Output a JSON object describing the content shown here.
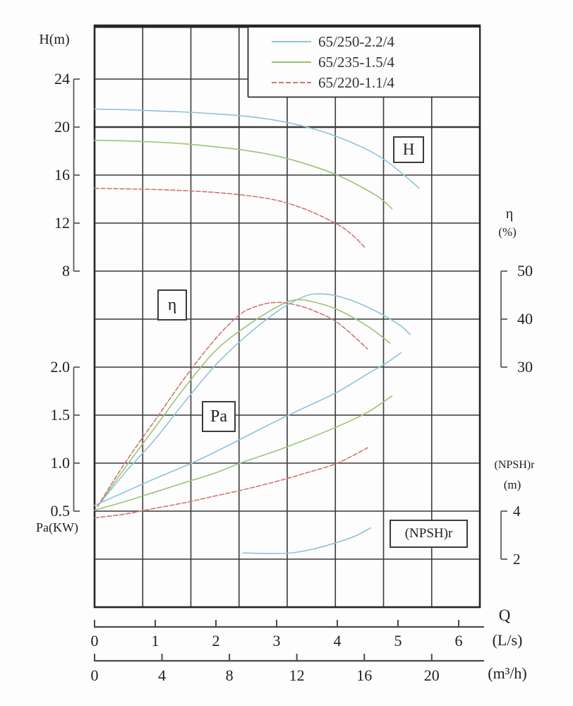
{
  "page": {
    "background": "#fdfdfd"
  },
  "labels": {
    "h_axis": "H(m)",
    "pa_axis": "Pa(KW)",
    "eta_axis": "η",
    "eta_unit": "(%)",
    "npshr_axis": "(NPSH)r",
    "npshr_unit": "(m)",
    "q_axis": "Q",
    "q_unit_ls": "(L/s)",
    "q_unit_m3h": "(m³/h)",
    "box_h": "H",
    "box_eta": "η",
    "box_pa": "Pa",
    "box_npshr": "(NPSH)r",
    "h_ticks": [
      "24",
      "20",
      "16",
      "12",
      "8"
    ],
    "pa_ticks": [
      "2.0",
      "1.5",
      "1.0",
      "0.5"
    ],
    "eta_ticks": [
      "50",
      "40",
      "30"
    ],
    "npsh_ticks": [
      "4",
      "2"
    ],
    "qls_ticks": [
      "0",
      "1",
      "2",
      "3",
      "4",
      "5",
      "6"
    ],
    "qm3h_ticks": [
      "0",
      "4",
      "8",
      "12",
      "16",
      "20"
    ]
  },
  "chart_data": {
    "type": "line",
    "x": {
      "label": "Q",
      "units": [
        "(L/s)",
        "(m³/h)"
      ],
      "ticks_ls": [
        0,
        1,
        2,
        3,
        4,
        5,
        6
      ],
      "ticks_m3h": [
        0,
        4,
        8,
        12,
        16,
        20
      ],
      "range_ls": [
        0,
        6.35
      ],
      "grid": "on"
    },
    "models": [
      "65/250-2.2/4",
      "65/235-1.5/4",
      "65/220-1.1/4"
    ],
    "colors": {
      "65/250-2.2/4": "#8fc2da",
      "65/235-1.5/4": "#9cc474",
      "65/220-1.1/4": "#d07474"
    },
    "legend_position": "top-right",
    "panels": [
      {
        "quantity": "H",
        "unit": "m",
        "ticks": [
          24,
          20,
          16,
          12,
          8
        ],
        "series": [
          {
            "model": "65/250-2.2/4",
            "points": [
              [
                0,
                21.5
              ],
              [
                0.5,
                21.45
              ],
              [
                1,
                21.35
              ],
              [
                1.5,
                21.25
              ],
              [
                2,
                21.1
              ],
              [
                2.5,
                20.9
              ],
              [
                3,
                20.55
              ],
              [
                3.5,
                20.0
              ],
              [
                4,
                19.2
              ],
              [
                4.5,
                18.1
              ],
              [
                4.8,
                17.2
              ],
              [
                5.1,
                16.0
              ],
              [
                5.35,
                14.9
              ]
            ]
          },
          {
            "model": "65/235-1.5/4",
            "points": [
              [
                0,
                18.9
              ],
              [
                0.5,
                18.85
              ],
              [
                1,
                18.75
              ],
              [
                1.5,
                18.6
              ],
              [
                2,
                18.35
              ],
              [
                2.5,
                18.05
              ],
              [
                3,
                17.6
              ],
              [
                3.5,
                16.9
              ],
              [
                4,
                16.0
              ],
              [
                4.4,
                15.0
              ],
              [
                4.7,
                14.1
              ],
              [
                4.9,
                13.2
              ]
            ]
          },
          {
            "model": "65/220-1.1/4",
            "points": [
              [
                0,
                14.9
              ],
              [
                0.5,
                14.85
              ],
              [
                1,
                14.8
              ],
              [
                1.5,
                14.7
              ],
              [
                2,
                14.55
              ],
              [
                2.5,
                14.3
              ],
              [
                3,
                13.9
              ],
              [
                3.5,
                13.1
              ],
              [
                4,
                11.9
              ],
              [
                4.25,
                11.0
              ],
              [
                4.45,
                10.0
              ]
            ]
          }
        ]
      },
      {
        "quantity": "η",
        "unit": "%",
        "ticks": [
          50,
          40,
          30
        ],
        "series": [
          {
            "model": "65/250-2.2/4",
            "points": [
              [
                0.05,
                1
              ],
              [
                0.5,
                8
              ],
              [
                1,
                15
              ],
              [
                1.5,
                23
              ],
              [
                2,
                30.5
              ],
              [
                2.5,
                36.5
              ],
              [
                3,
                41.5
              ],
              [
                3.3,
                43.8
              ],
              [
                3.6,
                45.2
              ],
              [
                4,
                44.8
              ],
              [
                4.5,
                42.5
              ],
              [
                5,
                39
              ],
              [
                5.2,
                36.8
              ]
            ]
          },
          {
            "model": "65/235-1.5/4",
            "points": [
              [
                0.05,
                1
              ],
              [
                0.5,
                9
              ],
              [
                1,
                17.5
              ],
              [
                1.5,
                26
              ],
              [
                2,
                33.5
              ],
              [
                2.5,
                38.5
              ],
              [
                3,
                42.5
              ],
              [
                3.3,
                44
              ],
              [
                3.6,
                43.6
              ],
              [
                4,
                42
              ],
              [
                4.5,
                38.5
              ],
              [
                4.87,
                35
              ]
            ]
          },
          {
            "model": "65/220-1.1/4",
            "points": [
              [
                0.05,
                1
              ],
              [
                0.5,
                10
              ],
              [
                1,
                19
              ],
              [
                1.5,
                28
              ],
              [
                2,
                36
              ],
              [
                2.4,
                41
              ],
              [
                2.7,
                42.8
              ],
              [
                3,
                43.5
              ],
              [
                3.3,
                43
              ],
              [
                3.6,
                41.8
              ],
              [
                4,
                39.3
              ],
              [
                4.5,
                33.8
              ]
            ]
          }
        ]
      },
      {
        "quantity": "Pa",
        "unit": "KW",
        "ticks": [
          2.0,
          1.5,
          1.0,
          0.5
        ],
        "series": [
          {
            "model": "65/250-2.2/4",
            "points": [
              [
                0,
                0.56
              ],
              [
                0.5,
                0.7
              ],
              [
                1,
                0.84
              ],
              [
                1.6,
                1.0
              ],
              [
                2,
                1.12
              ],
              [
                2.5,
                1.28
              ],
              [
                3,
                1.44
              ],
              [
                3.5,
                1.59
              ],
              [
                4,
                1.74
              ],
              [
                4.5,
                1.93
              ],
              [
                4.8,
                2.04
              ],
              [
                5.05,
                2.15
              ]
            ]
          },
          {
            "model": "65/235-1.5/4",
            "points": [
              [
                0,
                0.51
              ],
              [
                0.5,
                0.6
              ],
              [
                1,
                0.7
              ],
              [
                1.5,
                0.8
              ],
              [
                2,
                0.9
              ],
              [
                2.4,
                1.0
              ],
              [
                3,
                1.13
              ],
              [
                3.5,
                1.25
              ],
              [
                4,
                1.38
              ],
              [
                4.5,
                1.53
              ],
              [
                4.9,
                1.7
              ]
            ]
          },
          {
            "model": "65/220-1.1/4",
            "points": [
              [
                0,
                0.43
              ],
              [
                0.5,
                0.47
              ],
              [
                1,
                0.53
              ],
              [
                1.5,
                0.59
              ],
              [
                2,
                0.66
              ],
              [
                2.5,
                0.73
              ],
              [
                3,
                0.81
              ],
              [
                3.5,
                0.9
              ],
              [
                4,
                1.0
              ],
              [
                4.5,
                1.16
              ]
            ]
          }
        ]
      },
      {
        "quantity": "(NPSH)r",
        "unit": "m",
        "ticks": [
          4,
          2
        ],
        "series": [
          {
            "model": "65/250-2.2/4",
            "points": [
              [
                2.45,
                2.26
              ],
              [
                2.8,
                2.24
              ],
              [
                3.2,
                2.25
              ],
              [
                3.6,
                2.42
              ],
              [
                4,
                2.7
              ],
              [
                4.3,
                2.97
              ],
              [
                4.55,
                3.3
              ]
            ]
          }
        ]
      }
    ]
  }
}
